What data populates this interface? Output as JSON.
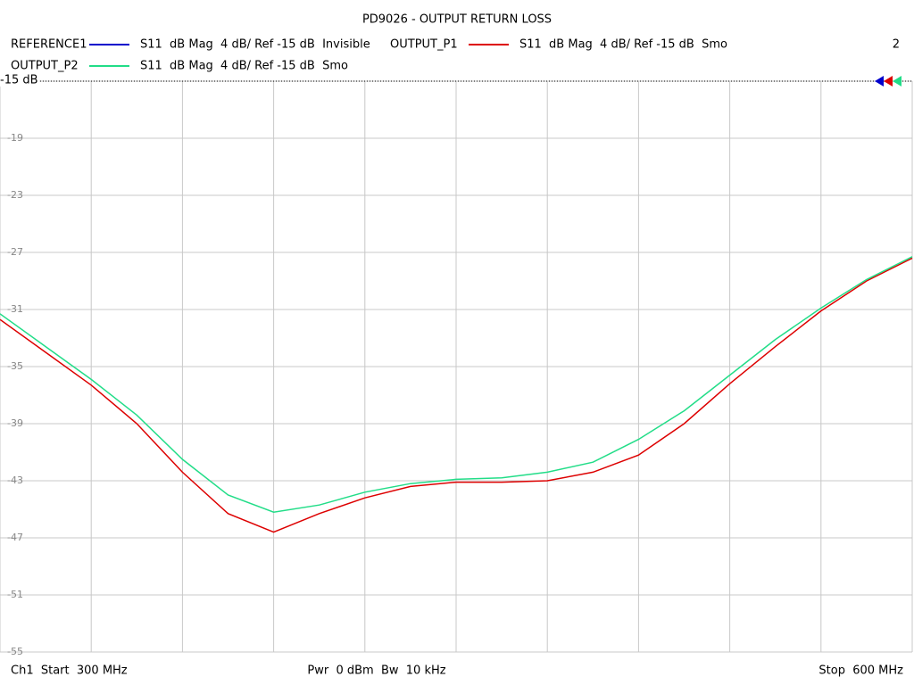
{
  "chart_data": {
    "type": "line",
    "title": "PD9026 - OUTPUT RETURN LOSS",
    "channel_number": "2",
    "ref_label": "-15 dB",
    "start_label": "Ch1  Start  300 MHz",
    "center_label": "Pwr  0 dBm  Bw  10 kHz",
    "stop_label": "Stop  600 MHz",
    "x": [
      300,
      315,
      330,
      345,
      360,
      375,
      390,
      405,
      420,
      435,
      450,
      465,
      480,
      495,
      510,
      525,
      540,
      555,
      570,
      585,
      600
    ],
    "xlim": [
      300,
      600
    ],
    "xticks": [
      300,
      330,
      360,
      390,
      420,
      450,
      480,
      510,
      540,
      570,
      600
    ],
    "ylim": [
      -55,
      -15
    ],
    "yticks": [
      -15,
      -19,
      -23,
      -27,
      -31,
      -35,
      -39,
      -43,
      -47,
      -51,
      -55
    ],
    "grid": true,
    "series": [
      {
        "name": "REFERENCE1",
        "color": "#0000cc",
        "description": "S11  dB Mag  4 dB/ Ref -15 dB  Invisible",
        "values": [
          null,
          null,
          null,
          null,
          null,
          null,
          null,
          null,
          null,
          null,
          null,
          null,
          null,
          null,
          null,
          null,
          null,
          null,
          null,
          null,
          null
        ]
      },
      {
        "name": "OUTPUT_P1",
        "color": "#dd0000",
        "description": "S11  dB Mag  4 dB/ Ref -15 dB  Smo",
        "values": [
          -31.7,
          -34.0,
          -36.3,
          -39.0,
          -42.4,
          -45.3,
          -46.6,
          -45.3,
          -44.2,
          -43.4,
          -43.1,
          -43.1,
          -43.0,
          -42.4,
          -41.2,
          -39.0,
          -36.2,
          -33.6,
          -31.1,
          -29.0,
          -27.4
        ]
      },
      {
        "name": "OUTPUT_P2",
        "color": "#22dd88",
        "description": "S11  dB Mag  4 dB/ Ref -15 dB  Smo",
        "values": [
          -31.3,
          -33.6,
          -35.9,
          -38.4,
          -41.5,
          -44.0,
          -45.2,
          -44.7,
          -43.8,
          -43.2,
          -42.9,
          -42.8,
          -42.4,
          -41.7,
          -40.1,
          -38.1,
          -35.6,
          -33.1,
          -30.9,
          -28.9,
          -27.3
        ]
      }
    ]
  }
}
